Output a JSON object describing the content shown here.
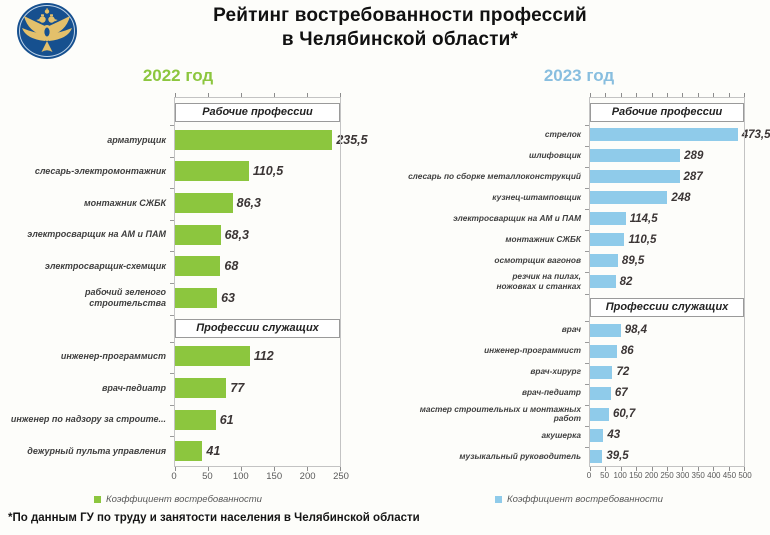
{
  "page": {
    "title_line1": "Рейтинг востребованности профессий",
    "title_line2": "в Челябинской области*",
    "footnote": "*По данным ГУ по труду и занятости населения в Челябинской области",
    "logo_icon": "double-headed-eagle-emblem"
  },
  "chart_data": [
    {
      "type": "bar",
      "orientation": "horizontal",
      "title": "2022 год",
      "accent_color": "#8cc63e",
      "bar_color": "#8cc63e",
      "legend": "Коэффициент востребованности",
      "xlim": [
        0,
        250
      ],
      "xticks": [
        0,
        50,
        100,
        150,
        200,
        250
      ],
      "grid": false,
      "legend_position": "bottom",
      "sections": [
        {
          "header": "Рабочие профессии",
          "items": [
            {
              "label": "арматурщик",
              "value": 235.5,
              "value_label": "235,5"
            },
            {
              "label": "слесарь-электромонтажник",
              "value": 110.5,
              "value_label": "110,5"
            },
            {
              "label": "монтажник СЖБК",
              "value": 86.3,
              "value_label": "86,3"
            },
            {
              "label": "электросварщик на АМ и ПАМ",
              "value": 68.3,
              "value_label": "68,3"
            },
            {
              "label": "электросварщик-схемщик",
              "value": 68,
              "value_label": "68"
            },
            {
              "label": "рабочий зеленого строительства",
              "value": 63,
              "value_label": "63"
            }
          ]
        },
        {
          "header": "Профессии служащих",
          "items": [
            {
              "label": "инженер-программист",
              "value": 112,
              "value_label": "112"
            },
            {
              "label": "врач-педиатр",
              "value": 77,
              "value_label": "77"
            },
            {
              "label": "инженер по надзору за строите...",
              "value": 61,
              "value_label": "61"
            },
            {
              "label": "дежурный пульта управления",
              "value": 41,
              "value_label": "41"
            }
          ]
        }
      ]
    },
    {
      "type": "bar",
      "orientation": "horizontal",
      "title": "2023 год",
      "accent_color": "#88bedf",
      "bar_color": "#8fcbea",
      "legend": "Коэффициент востребованности",
      "xlim": [
        0,
        500
      ],
      "xticks": [
        0,
        50,
        100,
        150,
        200,
        250,
        300,
        350,
        400,
        450,
        500
      ],
      "grid": false,
      "legend_position": "bottom",
      "sections": [
        {
          "header": "Рабочие профессии",
          "items": [
            {
              "label": "стрелок",
              "value": 473.5,
              "value_label": "473,5"
            },
            {
              "label": "шлифовщик",
              "value": 289,
              "value_label": "289"
            },
            {
              "label": "слесарь по сборке металлоконструкций",
              "value": 287,
              "value_label": "287"
            },
            {
              "label": "кузнец-штамповщик",
              "value": 248,
              "value_label": "248"
            },
            {
              "label": "электросварщик на АМ и ПАМ",
              "value": 114.5,
              "value_label": "114,5"
            },
            {
              "label": "монтажник СЖБК",
              "value": 110.5,
              "value_label": "110,5"
            },
            {
              "label": "осмотрщик вагонов",
              "value": 89.5,
              "value_label": "89,5"
            },
            {
              "label": "резчик на пилах,\nножовках и станках",
              "value": 82,
              "value_label": "82"
            }
          ]
        },
        {
          "header": "Профессии служащих",
          "items": [
            {
              "label": "врач",
              "value": 98.4,
              "value_label": "98,4"
            },
            {
              "label": "инженер-программист",
              "value": 86,
              "value_label": "86"
            },
            {
              "label": "врач-хирург",
              "value": 72,
              "value_label": "72"
            },
            {
              "label": "врач-педиатр",
              "value": 67,
              "value_label": "67"
            },
            {
              "label": "мастер строительных и монтажных работ",
              "value": 60.7,
              "value_label": "60,7"
            },
            {
              "label": "акушерка",
              "value": 43,
              "value_label": "43"
            },
            {
              "label": "музыкальный руководитель",
              "value": 39.5,
              "value_label": "39,5"
            }
          ]
        }
      ]
    }
  ]
}
